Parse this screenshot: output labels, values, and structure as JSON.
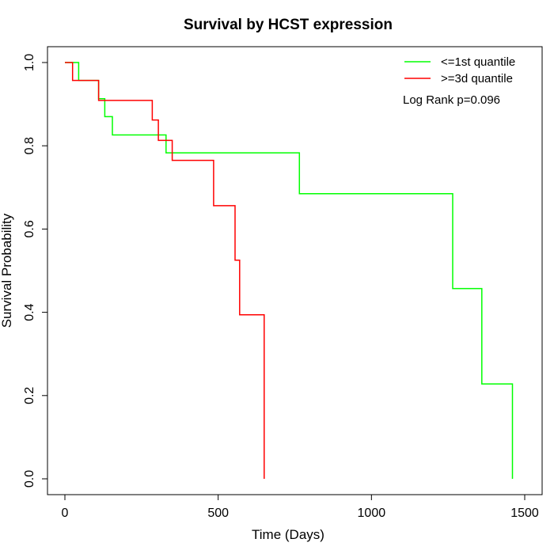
{
  "chart_data": {
    "type": "line",
    "step": true,
    "title": "Survival by HCST expression",
    "xlabel": "Time (Days)",
    "ylabel": "Survival Probability",
    "xlim": [
      0,
      1500
    ],
    "ylim": [
      0,
      1
    ],
    "x_ticks": [
      0,
      500,
      1000,
      1500
    ],
    "y_ticks": [
      0.0,
      0.2,
      0.4,
      0.6,
      0.8,
      1.0
    ],
    "x_tick_labels": [
      "0",
      "500",
      "1000",
      "1500"
    ],
    "y_tick_labels": [
      "0.0",
      "0.2",
      "0.4",
      "0.6",
      "0.8",
      "1.0"
    ],
    "legend_position": "top-right",
    "series": [
      {
        "name": "<=1st quantile",
        "color": "#00ff00",
        "points": [
          [
            0,
            1.0
          ],
          [
            45,
            1.0
          ],
          [
            45,
            0.957
          ],
          [
            110,
            0.957
          ],
          [
            110,
            0.913
          ],
          [
            130,
            0.913
          ],
          [
            130,
            0.87
          ],
          [
            155,
            0.87
          ],
          [
            155,
            0.826
          ],
          [
            330,
            0.826
          ],
          [
            330,
            0.783
          ],
          [
            765,
            0.783
          ],
          [
            765,
            0.685
          ],
          [
            1265,
            0.685
          ],
          [
            1265,
            0.457
          ],
          [
            1360,
            0.457
          ],
          [
            1360,
            0.228
          ],
          [
            1460,
            0.228
          ],
          [
            1460,
            0.0
          ]
        ]
      },
      {
        "name": ">=3d quantile",
        "color": "#ff0000",
        "points": [
          [
            0,
            1.0
          ],
          [
            25,
            1.0
          ],
          [
            25,
            0.957
          ],
          [
            110,
            0.957
          ],
          [
            110,
            0.909
          ],
          [
            285,
            0.909
          ],
          [
            285,
            0.862
          ],
          [
            305,
            0.862
          ],
          [
            305,
            0.813
          ],
          [
            350,
            0.813
          ],
          [
            350,
            0.765
          ],
          [
            485,
            0.765
          ],
          [
            485,
            0.656
          ],
          [
            555,
            0.656
          ],
          [
            555,
            0.525
          ],
          [
            570,
            0.525
          ],
          [
            570,
            0.394
          ],
          [
            650,
            0.394
          ],
          [
            650,
            0.0
          ]
        ]
      }
    ],
    "annotations": [
      "Log Rank p=0.096"
    ]
  }
}
